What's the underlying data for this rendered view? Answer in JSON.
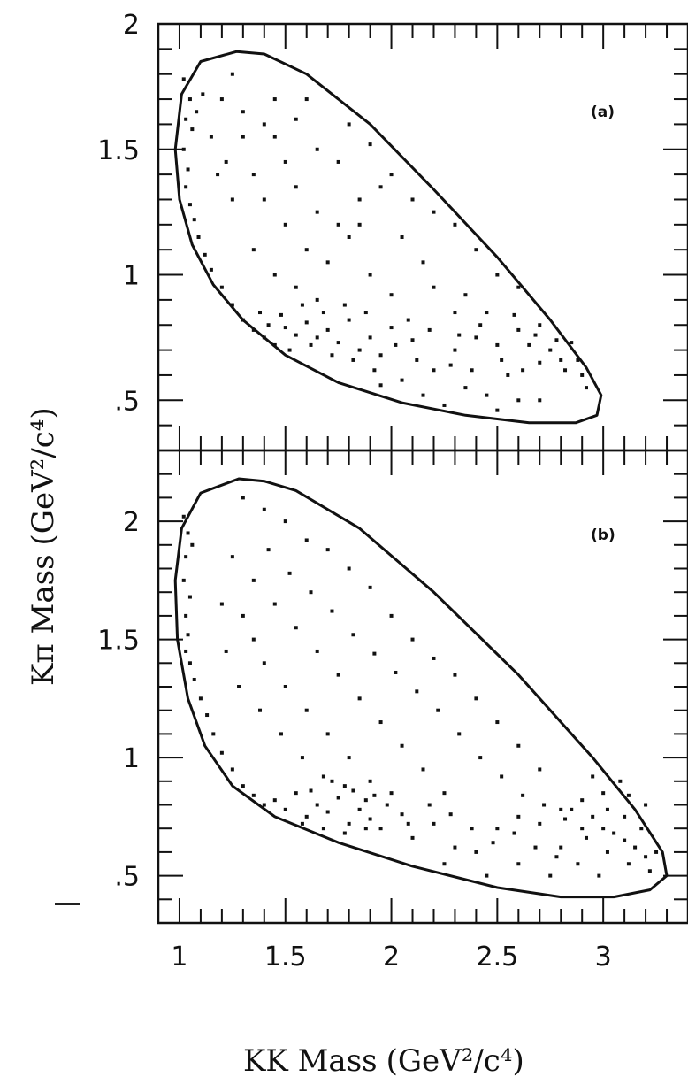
{
  "chart_data": [
    {
      "type": "scatter",
      "panel_label": "(a)",
      "xlim": [
        0.9,
        3.4
      ],
      "ylim": [
        0.3,
        2.0
      ],
      "yticks": [
        ".5",
        "1",
        "1.5",
        "2"
      ],
      "ytick_values": [
        0.5,
        1.0,
        1.5,
        2.0
      ],
      "boundary": [
        [
          1.27,
          1.89
        ],
        [
          1.1,
          1.85
        ],
        [
          1.01,
          1.72
        ],
        [
          0.98,
          1.5
        ],
        [
          1.0,
          1.3
        ],
        [
          1.06,
          1.12
        ],
        [
          1.16,
          0.96
        ],
        [
          1.3,
          0.82
        ],
        [
          1.5,
          0.68
        ],
        [
          1.75,
          0.57
        ],
        [
          2.05,
          0.49
        ],
        [
          2.35,
          0.44
        ],
        [
          2.65,
          0.41
        ],
        [
          2.87,
          0.41
        ],
        [
          2.97,
          0.44
        ],
        [
          2.99,
          0.52
        ],
        [
          2.92,
          0.63
        ],
        [
          2.75,
          0.82
        ],
        [
          2.5,
          1.07
        ],
        [
          2.2,
          1.34
        ],
        [
          1.9,
          1.6
        ],
        [
          1.6,
          1.8
        ],
        [
          1.4,
          1.88
        ],
        [
          1.27,
          1.89
        ]
      ],
      "points": [
        [
          1.02,
          1.78
        ],
        [
          1.05,
          1.7
        ],
        [
          1.03,
          1.62
        ],
        [
          1.08,
          1.65
        ],
        [
          1.11,
          1.72
        ],
        [
          1.06,
          1.58
        ],
        [
          1.02,
          1.5
        ],
        [
          1.04,
          1.42
        ],
        [
          1.03,
          1.35
        ],
        [
          1.05,
          1.28
        ],
        [
          1.07,
          1.22
        ],
        [
          1.09,
          1.15
        ],
        [
          1.12,
          1.08
        ],
        [
          1.15,
          1.02
        ],
        [
          1.2,
          0.95
        ],
        [
          1.25,
          0.88
        ],
        [
          1.3,
          0.82
        ],
        [
          1.35,
          0.78
        ],
        [
          1.4,
          0.75
        ],
        [
          1.45,
          0.72
        ],
        [
          1.5,
          0.79
        ],
        [
          1.55,
          0.76
        ],
        [
          1.6,
          0.81
        ],
        [
          1.65,
          0.75
        ],
        [
          1.7,
          0.78
        ],
        [
          1.75,
          0.73
        ],
        [
          1.8,
          0.82
        ],
        [
          1.85,
          0.7
        ],
        [
          1.9,
          0.75
        ],
        [
          1.95,
          0.68
        ],
        [
          2.0,
          0.79
        ],
        [
          2.1,
          0.74
        ],
        [
          2.2,
          0.62
        ],
        [
          2.3,
          0.7
        ],
        [
          2.4,
          0.75
        ],
        [
          2.5,
          0.72
        ],
        [
          2.6,
          0.78
        ],
        [
          2.7,
          0.8
        ],
        [
          2.75,
          0.7
        ],
        [
          2.8,
          0.66
        ],
        [
          2.9,
          0.6
        ],
        [
          2.85,
          0.73
        ],
        [
          2.55,
          0.6
        ],
        [
          2.45,
          0.52
        ],
        [
          2.35,
          0.55
        ],
        [
          2.25,
          0.48
        ],
        [
          2.15,
          0.52
        ],
        [
          2.05,
          0.58
        ],
        [
          1.95,
          0.56
        ],
        [
          1.3,
          1.65
        ],
        [
          1.4,
          1.6
        ],
        [
          1.45,
          1.55
        ],
        [
          1.6,
          1.7
        ],
        [
          1.65,
          1.5
        ],
        [
          1.75,
          1.45
        ],
        [
          1.8,
          1.6
        ],
        [
          1.9,
          1.52
        ],
        [
          2.0,
          1.4
        ],
        [
          2.1,
          1.3
        ],
        [
          2.2,
          1.25
        ],
        [
          2.3,
          1.2
        ],
        [
          2.4,
          1.1
        ],
        [
          2.5,
          1.0
        ],
        [
          2.6,
          0.95
        ],
        [
          1.35,
          1.4
        ],
        [
          1.4,
          1.3
        ],
        [
          1.5,
          1.2
        ],
        [
          1.6,
          1.1
        ],
        [
          1.7,
          1.05
        ],
        [
          1.8,
          1.15
        ],
        [
          1.9,
          1.0
        ],
        [
          2.0,
          0.92
        ],
        [
          2.2,
          0.95
        ],
        [
          2.3,
          0.85
        ],
        [
          1.25,
          1.3
        ],
        [
          1.22,
          1.45
        ],
        [
          1.35,
          1.1
        ],
        [
          1.45,
          1.0
        ],
        [
          1.55,
          0.95
        ],
        [
          1.65,
          0.9
        ],
        [
          1.75,
          1.2
        ],
        [
          1.85,
          1.3
        ],
        [
          1.95,
          1.35
        ],
        [
          1.5,
          1.45
        ],
        [
          1.55,
          1.35
        ],
        [
          1.65,
          1.25
        ],
        [
          1.15,
          1.55
        ],
        [
          1.18,
          1.4
        ],
        [
          1.2,
          1.7
        ],
        [
          1.25,
          1.8
        ],
        [
          1.3,
          1.55
        ],
        [
          1.45,
          1.7
        ],
        [
          1.55,
          1.62
        ],
        [
          1.85,
          1.2
        ],
        [
          2.05,
          1.15
        ],
        [
          2.15,
          1.05
        ],
        [
          2.35,
          0.92
        ],
        [
          2.45,
          0.85
        ],
        [
          2.65,
          0.72
        ],
        [
          2.7,
          0.65
        ],
        [
          1.38,
          0.85
        ],
        [
          1.42,
          0.8
        ],
        [
          1.48,
          0.84
        ],
        [
          1.52,
          0.7
        ],
        [
          1.58,
          0.88
        ],
        [
          1.62,
          0.72
        ],
        [
          1.68,
          0.85
        ],
        [
          1.72,
          0.68
        ],
        [
          1.78,
          0.88
        ],
        [
          1.82,
          0.66
        ],
        [
          1.88,
          0.85
        ],
        [
          1.92,
          0.62
        ],
        [
          2.02,
          0.72
        ],
        [
          2.08,
          0.82
        ],
        [
          2.12,
          0.66
        ],
        [
          2.18,
          0.78
        ],
        [
          2.28,
          0.64
        ],
        [
          2.32,
          0.76
        ],
        [
          2.38,
          0.62
        ],
        [
          2.42,
          0.8
        ],
        [
          2.52,
          0.66
        ],
        [
          2.58,
          0.84
        ],
        [
          2.62,
          0.62
        ],
        [
          2.68,
          0.76
        ],
        [
          2.78,
          0.74
        ],
        [
          2.82,
          0.62
        ],
        [
          2.88,
          0.66
        ],
        [
          2.92,
          0.55
        ],
        [
          2.6,
          0.5
        ],
        [
          2.7,
          0.5
        ],
        [
          2.5,
          0.46
        ]
      ]
    },
    {
      "type": "scatter",
      "panel_label": "(b)",
      "xlim": [
        0.9,
        3.4
      ],
      "ylim": [
        0.3,
        2.3
      ],
      "xticks": [
        "1",
        "1.5",
        "2",
        "2.5",
        "3"
      ],
      "xtick_values": [
        1.0,
        1.5,
        2.0,
        2.5,
        3.0
      ],
      "yticks": [
        ".5",
        "1",
        "1.5",
        "2"
      ],
      "ytick_values": [
        0.5,
        1.0,
        1.5,
        2.0
      ],
      "boundary": [
        [
          1.28,
          2.18
        ],
        [
          1.1,
          2.12
        ],
        [
          1.01,
          1.97
        ],
        [
          0.98,
          1.75
        ],
        [
          0.99,
          1.5
        ],
        [
          1.04,
          1.25
        ],
        [
          1.12,
          1.05
        ],
        [
          1.25,
          0.88
        ],
        [
          1.45,
          0.75
        ],
        [
          1.75,
          0.64
        ],
        [
          2.1,
          0.54
        ],
        [
          2.5,
          0.45
        ],
        [
          2.8,
          0.41
        ],
        [
          3.05,
          0.41
        ],
        [
          3.22,
          0.44
        ],
        [
          3.3,
          0.5
        ],
        [
          3.28,
          0.6
        ],
        [
          3.15,
          0.78
        ],
        [
          2.95,
          1.0
        ],
        [
          2.6,
          1.35
        ],
        [
          2.2,
          1.7
        ],
        [
          1.85,
          1.97
        ],
        [
          1.55,
          2.13
        ],
        [
          1.4,
          2.17
        ],
        [
          1.28,
          2.18
        ]
      ],
      "points": [
        [
          1.02,
          2.02
        ],
        [
          1.04,
          1.95
        ],
        [
          1.03,
          1.85
        ],
        [
          1.06,
          1.9
        ],
        [
          1.02,
          1.75
        ],
        [
          1.05,
          1.68
        ],
        [
          1.03,
          1.6
        ],
        [
          1.04,
          1.52
        ],
        [
          1.03,
          1.45
        ],
        [
          1.05,
          1.4
        ],
        [
          1.07,
          1.33
        ],
        [
          1.1,
          1.25
        ],
        [
          1.13,
          1.18
        ],
        [
          1.16,
          1.1
        ],
        [
          1.2,
          1.02
        ],
        [
          1.25,
          0.95
        ],
        [
          1.3,
          0.88
        ],
        [
          1.35,
          0.84
        ],
        [
          1.4,
          0.8
        ],
        [
          1.45,
          0.82
        ],
        [
          1.5,
          0.78
        ],
        [
          1.55,
          0.85
        ],
        [
          1.6,
          0.75
        ],
        [
          1.65,
          0.8
        ],
        [
          1.7,
          0.77
        ],
        [
          1.75,
          0.83
        ],
        [
          1.8,
          0.72
        ],
        [
          1.85,
          0.78
        ],
        [
          1.9,
          0.74
        ],
        [
          1.95,
          0.7
        ],
        [
          2.05,
          0.76
        ],
        [
          2.1,
          0.66
        ],
        [
          2.2,
          0.72
        ],
        [
          2.3,
          0.62
        ],
        [
          2.4,
          0.6
        ],
        [
          2.5,
          0.7
        ],
        [
          2.6,
          0.75
        ],
        [
          2.7,
          0.72
        ],
        [
          2.8,
          0.78
        ],
        [
          2.9,
          0.82
        ],
        [
          2.95,
          0.75
        ],
        [
          3.0,
          0.7
        ],
        [
          3.05,
          0.68
        ],
        [
          3.1,
          0.65
        ],
        [
          3.15,
          0.62
        ],
        [
          3.2,
          0.58
        ],
        [
          3.1,
          0.75
        ],
        [
          3.0,
          0.85
        ],
        [
          2.95,
          0.92
        ],
        [
          2.9,
          0.7
        ],
        [
          2.85,
          0.78
        ],
        [
          3.18,
          0.7
        ],
        [
          3.22,
          0.52
        ],
        [
          2.75,
          0.5
        ],
        [
          2.6,
          0.55
        ],
        [
          2.45,
          0.5
        ],
        [
          2.25,
          0.55
        ],
        [
          1.3,
          2.1
        ],
        [
          1.4,
          2.05
        ],
        [
          1.5,
          2.0
        ],
        [
          1.6,
          1.92
        ],
        [
          1.7,
          1.88
        ],
        [
          1.8,
          1.8
        ],
        [
          1.9,
          1.72
        ],
        [
          2.0,
          1.6
        ],
        [
          2.1,
          1.5
        ],
        [
          2.2,
          1.42
        ],
        [
          2.3,
          1.35
        ],
        [
          2.4,
          1.25
        ],
        [
          2.5,
          1.15
        ],
        [
          2.6,
          1.05
        ],
        [
          2.7,
          0.95
        ],
        [
          1.25,
          1.85
        ],
        [
          1.35,
          1.75
        ],
        [
          1.45,
          1.65
        ],
        [
          1.55,
          1.55
        ],
        [
          1.65,
          1.45
        ],
        [
          1.75,
          1.35
        ],
        [
          1.85,
          1.25
        ],
        [
          1.95,
          1.15
        ],
        [
          2.05,
          1.05
        ],
        [
          2.15,
          0.95
        ],
        [
          2.25,
          0.85
        ],
        [
          1.3,
          1.6
        ],
        [
          1.35,
          1.5
        ],
        [
          1.4,
          1.4
        ],
        [
          1.5,
          1.3
        ],
        [
          1.6,
          1.2
        ],
        [
          1.7,
          1.1
        ],
        [
          1.8,
          1.0
        ],
        [
          1.9,
          0.9
        ],
        [
          2.0,
          0.85
        ],
        [
          1.2,
          1.65
        ],
        [
          1.22,
          1.45
        ],
        [
          1.28,
          1.3
        ],
        [
          1.38,
          1.2
        ],
        [
          1.48,
          1.1
        ],
        [
          1.58,
          1.0
        ],
        [
          1.68,
          0.92
        ],
        [
          1.78,
          0.88
        ],
        [
          1.88,
          0.82
        ],
        [
          1.98,
          0.8
        ],
        [
          1.42,
          1.88
        ],
        [
          1.52,
          1.78
        ],
        [
          1.62,
          1.7
        ],
        [
          1.72,
          1.62
        ],
        [
          1.82,
          1.52
        ],
        [
          1.92,
          1.44
        ],
        [
          2.02,
          1.36
        ],
        [
          2.12,
          1.28
        ],
        [
          2.22,
          1.2
        ],
        [
          2.32,
          1.1
        ],
        [
          2.42,
          1.0
        ],
        [
          2.52,
          0.92
        ],
        [
          2.62,
          0.84
        ],
        [
          2.72,
          0.8
        ],
        [
          2.82,
          0.74
        ],
        [
          2.92,
          0.66
        ],
        [
          3.02,
          0.6
        ],
        [
          3.12,
          0.55
        ],
        [
          3.25,
          0.6
        ],
        [
          3.2,
          0.8
        ],
        [
          3.08,
          0.9
        ],
        [
          2.98,
          0.5
        ],
        [
          2.88,
          0.55
        ],
        [
          2.8,
          0.62
        ],
        [
          1.58,
          0.72
        ],
        [
          1.62,
          0.86
        ],
        [
          1.68,
          0.7
        ],
        [
          1.72,
          0.9
        ],
        [
          1.78,
          0.68
        ],
        [
          1.82,
          0.86
        ],
        [
          1.88,
          0.7
        ],
        [
          1.92,
          0.84
        ],
        [
          2.08,
          0.72
        ],
        [
          2.18,
          0.8
        ],
        [
          2.28,
          0.76
        ],
        [
          2.38,
          0.7
        ],
        [
          2.48,
          0.64
        ],
        [
          2.58,
          0.68
        ],
        [
          2.68,
          0.62
        ],
        [
          2.78,
          0.58
        ],
        [
          3.02,
          0.78
        ],
        [
          3.12,
          0.84
        ]
      ]
    }
  ],
  "axes": {
    "x_label": "KK Mass",
    "x_label_units": "(GeV²/c⁴)",
    "y_label": "Kπ Mass",
    "y_label_units": "(GeV²/c⁴)"
  }
}
